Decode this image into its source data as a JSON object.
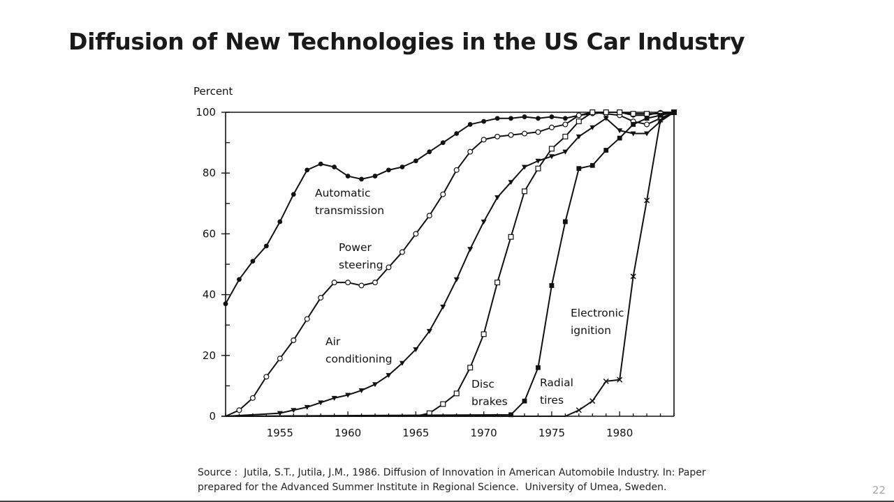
{
  "slide": {
    "title": "Diffusion of New Technologies in the US Car Industry",
    "source_line1": "Source :  Jutila, S.T., Jutila, J.M., 1986. Diffusion of Innovation in American Automobile Industry. In: Paper",
    "source_line2": "prepared for the Advanced Summer Institute in Regional Science.  University of Umea, Sweden.",
    "page_number": "22"
  },
  "chart_data": {
    "type": "line",
    "title": "",
    "xlabel": "",
    "ylabel": "Percent",
    "xlim": [
      1951,
      1984
    ],
    "ylim": [
      0,
      100
    ],
    "x_ticks": [
      1955,
      1960,
      1965,
      1970,
      1975,
      1980
    ],
    "y_ticks": [
      0,
      20,
      40,
      60,
      80,
      100
    ],
    "grid": false,
    "series": [
      {
        "name": "Automatic transmission",
        "label_lines": [
          "Automatic",
          "transmission"
        ],
        "marker": "filled-circle",
        "x": [
          1951,
          1952,
          1953,
          1954,
          1955,
          1956,
          1957,
          1958,
          1959,
          1960,
          1961,
          1962,
          1963,
          1964,
          1965,
          1966,
          1967,
          1968,
          1969,
          1970,
          1971,
          1972,
          1973,
          1974,
          1975,
          1976,
          1977,
          1978,
          1979,
          1980,
          1981,
          1982,
          1983,
          1984
        ],
        "y": [
          37,
          45,
          51,
          56,
          64,
          73,
          81,
          83,
          82,
          79,
          78,
          79,
          81,
          82,
          84,
          87,
          90,
          93,
          96,
          97,
          98,
          98,
          98.5,
          98,
          98.5,
          98,
          99,
          99.5,
          100,
          100,
          99,
          99,
          100,
          100
        ]
      },
      {
        "name": "Power steering",
        "label_lines": [
          "Power",
          "steering"
        ],
        "marker": "open-circle",
        "x": [
          1951,
          1952,
          1953,
          1954,
          1955,
          1956,
          1957,
          1958,
          1959,
          1960,
          1961,
          1962,
          1963,
          1964,
          1965,
          1966,
          1967,
          1968,
          1969,
          1970,
          1971,
          1972,
          1973,
          1974,
          1975,
          1976,
          1977,
          1978,
          1979,
          1980,
          1981,
          1982,
          1983,
          1984
        ],
        "y": [
          0,
          2,
          6,
          13,
          19,
          25,
          32,
          39,
          44,
          44,
          43,
          44,
          49,
          54,
          60,
          66,
          73,
          81,
          87,
          91,
          92,
          92.5,
          93,
          93.5,
          95,
          96,
          99,
          100,
          99.5,
          99,
          97,
          96,
          98,
          100
        ]
      },
      {
        "name": "Air conditioning",
        "label_lines": [
          "Air",
          "conditioning"
        ],
        "marker": "filled-triangle",
        "x": [
          1951,
          1955,
          1956,
          1957,
          1958,
          1959,
          1960,
          1961,
          1962,
          1963,
          1964,
          1965,
          1966,
          1967,
          1968,
          1969,
          1970,
          1971,
          1972,
          1973,
          1974,
          1975,
          1976,
          1977,
          1978,
          1979,
          1980,
          1981,
          1982,
          1983,
          1984
        ],
        "y": [
          0,
          1,
          2,
          3,
          4.5,
          6,
          7,
          8.5,
          10.5,
          13.5,
          17.5,
          22,
          28,
          36,
          45,
          55,
          64,
          72,
          77,
          82,
          84,
          85.5,
          87,
          92,
          95,
          98,
          94,
          93,
          93,
          97,
          100
        ]
      },
      {
        "name": "Disc brakes",
        "label_lines": [
          "Disc",
          "brakes"
        ],
        "marker": "open-square",
        "x": [
          1951,
          1965,
          1966,
          1967,
          1968,
          1969,
          1970,
          1971,
          1972,
          1973,
          1974,
          1975,
          1976,
          1977,
          1978,
          1979,
          1980,
          1981,
          1982,
          1983,
          1984
        ],
        "y": [
          0,
          0,
          1,
          4,
          7.5,
          16,
          27,
          44,
          59,
          74,
          81.5,
          88,
          92,
          97,
          100,
          100,
          100,
          99.5,
          99.5,
          99.5,
          100
        ]
      },
      {
        "name": "Radial tires",
        "label_lines": [
          "Radial",
          "tires"
        ],
        "marker": "filled-square",
        "x": [
          1951,
          1972,
          1973,
          1974,
          1975,
          1976,
          1977,
          1978,
          1979,
          1980,
          1981,
          1982,
          1983,
          1984
        ],
        "y": [
          0,
          0.5,
          5,
          16,
          43,
          64,
          81.5,
          82.5,
          87.5,
          91.5,
          96,
          98,
          99,
          100
        ]
      },
      {
        "name": "Electronic ignition",
        "label_lines": [
          "Electronic",
          "ignition"
        ],
        "marker": "cross",
        "x": [
          1951,
          1976,
          1977,
          1978,
          1979,
          1980,
          1981,
          1982,
          1983,
          1984
        ],
        "y": [
          0,
          0,
          2,
          5,
          11.5,
          12,
          46,
          71,
          97.5,
          100
        ]
      }
    ]
  }
}
